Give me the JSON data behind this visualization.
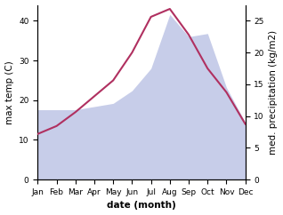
{
  "months": [
    "Jan",
    "Feb",
    "Mar",
    "Apr",
    "May",
    "Jun",
    "Jul",
    "Aug",
    "Sep",
    "Oct",
    "Nov",
    "Dec"
  ],
  "month_indices": [
    1,
    2,
    3,
    4,
    5,
    6,
    7,
    8,
    9,
    10,
    11,
    12
  ],
  "max_temp": [
    11.5,
    13.5,
    17.0,
    21.0,
    25.0,
    32.0,
    41.0,
    43.0,
    36.5,
    28.0,
    22.0,
    14.0
  ],
  "precipitation": [
    11.0,
    11.0,
    11.0,
    11.5,
    12.0,
    14.0,
    17.5,
    26.0,
    22.5,
    23.0,
    14.5,
    9.0
  ],
  "temp_ylim": [
    0,
    44
  ],
  "precip_ylim": [
    0,
    27.5
  ],
  "temp_yticks": [
    0,
    10,
    20,
    30,
    40
  ],
  "precip_yticks": [
    0,
    5,
    10,
    15,
    20,
    25
  ],
  "temp_color": "#b03060",
  "fill_color": "#b0b8e0",
  "fill_alpha": 0.7,
  "xlabel": "date (month)",
  "ylabel_left": "max temp (C)",
  "ylabel_right": "med. precipitation (kg/m2)",
  "background_color": "#ffffff",
  "label_fontsize": 7.5,
  "tick_fontsize": 6.5
}
